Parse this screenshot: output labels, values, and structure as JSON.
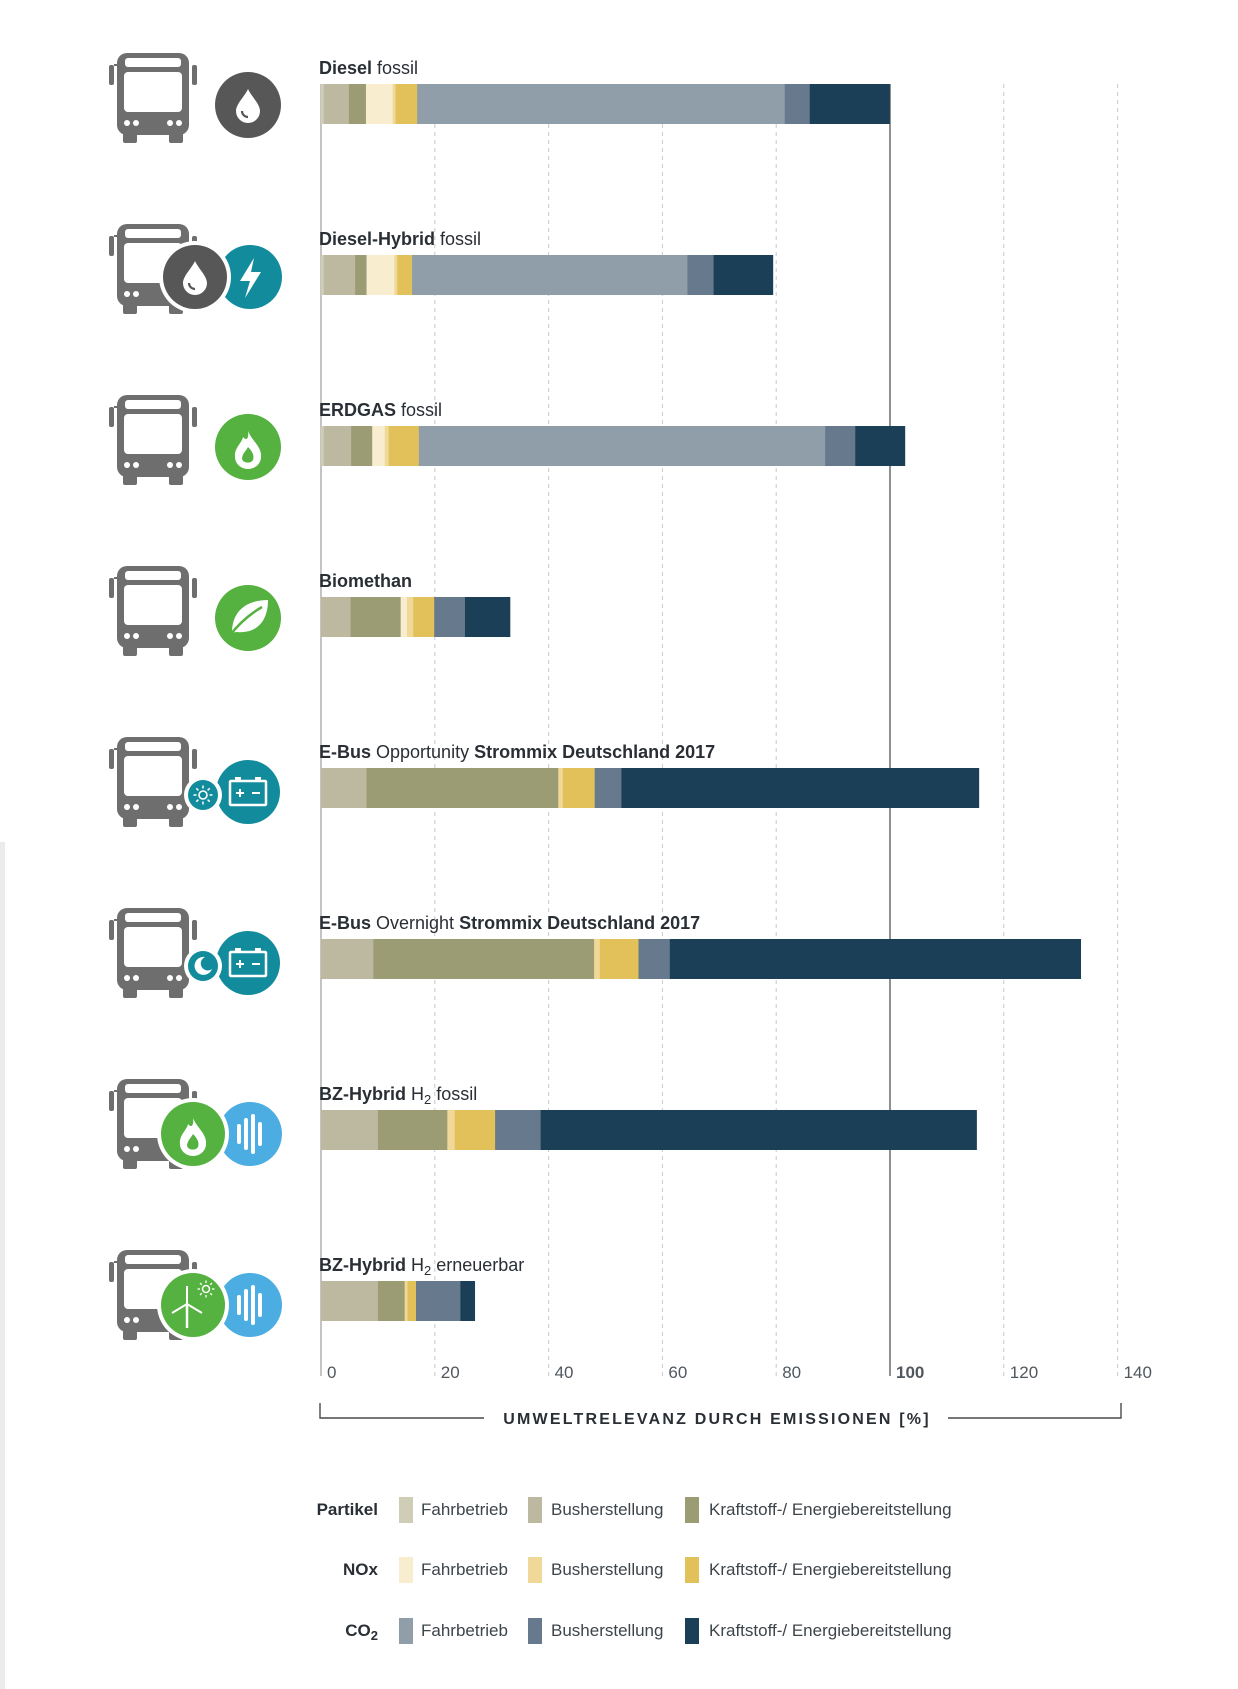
{
  "colors": {
    "partikel_fahrbetrieb": "#cfcdb6",
    "partikel_busherstellung": "#bcb9a0",
    "partikel_kraftstoff": "#9b9b74",
    "nox_fahrbetrieb": "#f8edce",
    "nox_busherstellung": "#f0d998",
    "nox_kraftstoff": "#e2c15a",
    "co2_fahrbetrieb": "#909ea9",
    "co2_busherstellung": "#67798d",
    "co2_kraftstoff": "#1c3f58",
    "bus_icon": "#6e6e6e",
    "diesel_circle": "#575757",
    "hybrid_circle": "#128c9c",
    "gas_circle": "#55b140",
    "battery_circle": "#128c9c",
    "h2_circle": "#4cade3"
  },
  "chart_data": {
    "type": "bar",
    "orientation": "horizontal",
    "stacked": true,
    "xlabel": "UMWELTRELEVANZ DURCH EMISSIONEN [%]",
    "xlim": [
      0,
      140
    ],
    "xticks": [
      "0",
      "20",
      "40",
      "60",
      "80",
      "100",
      "120",
      "140"
    ],
    "grid": "vertical dashed, solid line at 100",
    "legend_placement": "bottom",
    "categories": [
      {
        "label_bold": "Diesel",
        "label_rest": " fossil",
        "icons": [
          "bus-icon",
          "diesel-drop-icon"
        ]
      },
      {
        "label_bold": "Diesel-Hybrid",
        "label_rest": " fossil",
        "icons": [
          "bus-icon",
          "diesel-drop-icon",
          "lightning-icon"
        ]
      },
      {
        "label_bold": "ERDGAS",
        "label_rest": " fossil",
        "icons": [
          "bus-icon",
          "gas-flame-icon"
        ]
      },
      {
        "label_bold": "Biomethan",
        "label_rest": "",
        "icons": [
          "bus-icon",
          "leaf-icon"
        ]
      },
      {
        "label_bold": "E-Bus",
        "label_rest": " Opportunity ",
        "label_bold2": "Strommix Deutschland 2017",
        "icons": [
          "bus-icon",
          "sun-icon",
          "battery-icon"
        ]
      },
      {
        "label_bold": "E-Bus",
        "label_rest": " Overnight ",
        "label_bold2": "Strommix Deutschland 2017",
        "icons": [
          "bus-icon",
          "moon-icon",
          "battery-icon"
        ]
      },
      {
        "label_bold": "BZ-Hybrid",
        "label_rest": " H2 fossil",
        "icons": [
          "bus-icon",
          "gas-flame-icon",
          "hydrogen-icon"
        ]
      },
      {
        "label_bold": "BZ-Hybrid",
        "label_rest": " H2 erneuerbar",
        "icons": [
          "bus-icon",
          "wind-solar-icon",
          "hydrogen-icon"
        ]
      }
    ],
    "series": [
      {
        "name": "Partikel Fahrbetrieb",
        "color_key": "partikel_fahrbetrieb",
        "values": [
          0.5,
          0.5,
          0.5,
          0,
          0,
          0,
          0,
          0
        ]
      },
      {
        "name": "Partikel Busherstellung",
        "color_key": "partikel_busherstellung",
        "values": [
          4.4,
          5.5,
          4.8,
          5.2,
          8.0,
          9.2,
          10.0,
          10.0
        ]
      },
      {
        "name": "Partikel Kraftstoff-/Energiebereitstellung",
        "color_key": "partikel_kraftstoff",
        "values": [
          3.0,
          2.0,
          3.7,
          8.8,
          33.7,
          38.8,
          12.2,
          4.7
        ]
      },
      {
        "name": "NOx Fahrbetrieb",
        "color_key": "nox_fahrbetrieb",
        "values": [
          4.7,
          4.9,
          2.2,
          1.1,
          0,
          0,
          0,
          0
        ]
      },
      {
        "name": "NOx Busherstellung",
        "color_key": "nox_busherstellung",
        "values": [
          0.5,
          0.5,
          0.7,
          1.1,
          0.8,
          1.0,
          1.3,
          0.5
        ]
      },
      {
        "name": "NOx Kraftstoff-/Energiebereitstellung",
        "color_key": "nox_kraftstoff",
        "values": [
          3.8,
          2.6,
          5.3,
          3.7,
          5.6,
          6.8,
          7.1,
          1.5
        ]
      },
      {
        "name": "CO2 Fahrbetrieb",
        "color_key": "co2_fahrbetrieb",
        "values": [
          64.6,
          48.4,
          71.4,
          0,
          0,
          0,
          0,
          0
        ]
      },
      {
        "name": "CO2 Busherstellung",
        "color_key": "co2_busherstellung",
        "values": [
          4.4,
          4.6,
          5.3,
          5.4,
          4.7,
          5.5,
          8.0,
          7.8
        ]
      },
      {
        "name": "CO2 Kraftstoff-/Energiebereitstellung",
        "color_key": "co2_kraftstoff",
        "values": [
          14.0,
          10.4,
          8.7,
          7.9,
          62.8,
          72.2,
          76.6,
          2.5
        ]
      }
    ]
  },
  "legend": {
    "rows": [
      {
        "group": "Partikel",
        "items": [
          "Fahrbetrieb",
          "Busherstellung",
          "Kraftstoff-/ Energiebereitstellung"
        ],
        "color_keys": [
          "partikel_fahrbetrieb",
          "partikel_busherstellung",
          "partikel_kraftstoff"
        ]
      },
      {
        "group": "NOx",
        "items": [
          "Fahrbetrieb",
          "Busherstellung",
          "Kraftstoff-/ Energiebereitstellung"
        ],
        "color_keys": [
          "nox_fahrbetrieb",
          "nox_busherstellung",
          "nox_kraftstoff"
        ]
      },
      {
        "group": "CO2",
        "items": [
          "Fahrbetrieb",
          "Busherstellung",
          "Kraftstoff-/ Energiebereitstellung"
        ],
        "color_keys": [
          "co2_fahrbetrieb",
          "co2_busherstellung",
          "co2_kraftstoff"
        ]
      }
    ]
  }
}
